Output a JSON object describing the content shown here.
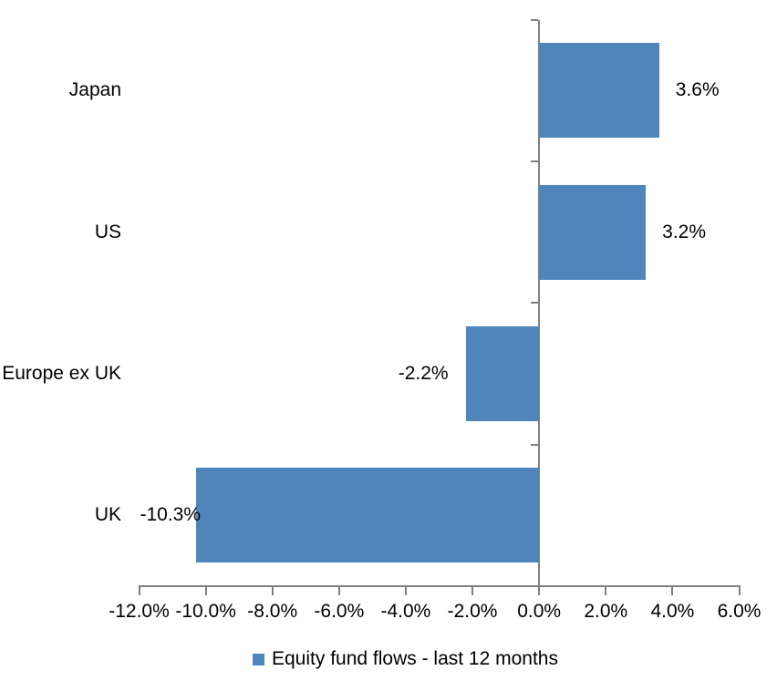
{
  "colors": {
    "bar": "#4E86BC",
    "axis": "#808080",
    "text": "#000000",
    "background": "#FFFFFF"
  },
  "legend": {
    "label": "Equity fund flows - last 12 months",
    "swatch_color": "#4E86BC"
  },
  "chart_data": {
    "type": "bar",
    "orientation": "horizontal",
    "title": "",
    "series_name": "Equity fund flows - last 12 months",
    "categories": [
      "Japan",
      "US",
      "Europe ex UK",
      "UK"
    ],
    "values": [
      3.6,
      3.2,
      -2.2,
      -10.3
    ],
    "data_labels": [
      "3.6%",
      "3.2%",
      "-2.2%",
      "-10.3%"
    ],
    "x_axis": {
      "min": -12,
      "max": 6,
      "tick_step": 2,
      "tick_labels": [
        "-12.0%",
        "-10.0%",
        "-8.0%",
        "-6.0%",
        "-4.0%",
        "-2.0%",
        "0.0%",
        "2.0%",
        "4.0%",
        "6.0%"
      ]
    },
    "grid": false,
    "legend_position": "bottom"
  }
}
